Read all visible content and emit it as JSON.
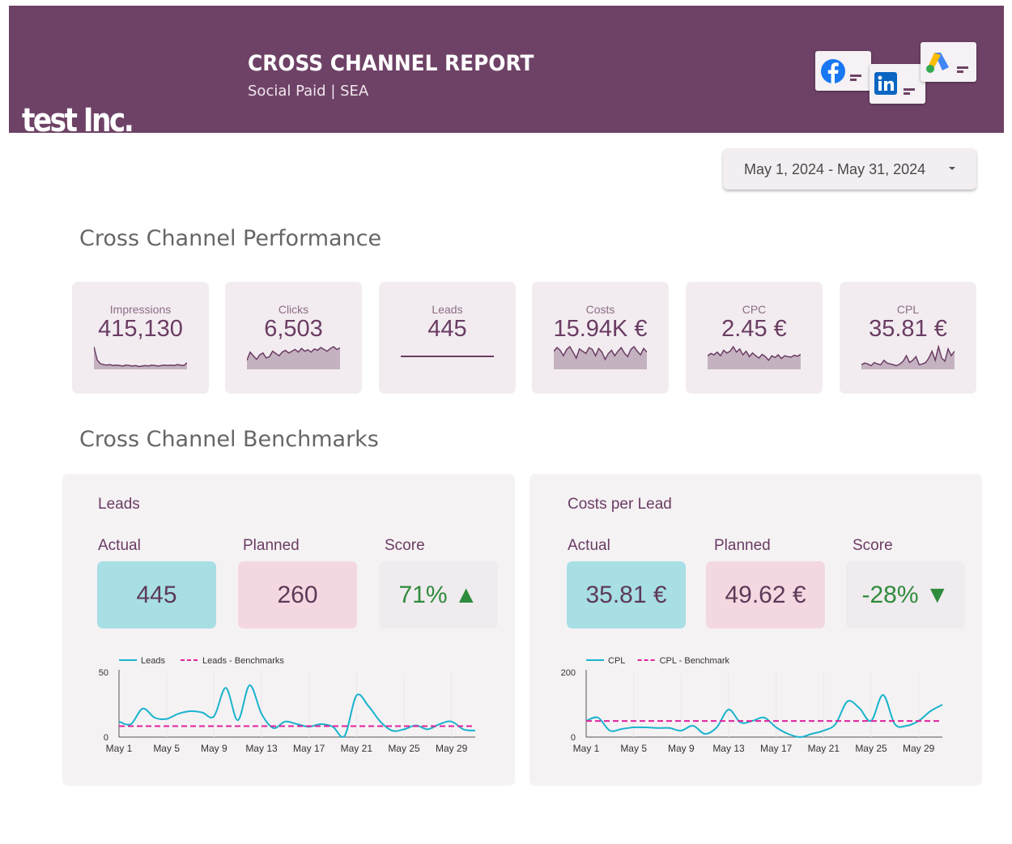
{
  "header": {
    "logo_text": "test Inc.",
    "title": "CROSS CHANNEL REPORT",
    "subtitle": "Social Paid | SEA",
    "channels": [
      "facebook",
      "linkedin",
      "google-ads"
    ]
  },
  "date_range": {
    "label": "May 1, 2024 - May 31, 2024"
  },
  "sections": {
    "performance": "Cross Channel Performance",
    "benchmarks": "Cross Channel Benchmarks"
  },
  "kpis": [
    {
      "label": "Impressions",
      "value": "415,130",
      "trend": [
        48,
        20,
        12,
        10,
        9,
        10,
        8,
        9,
        8,
        7,
        9,
        8,
        7,
        8,
        6,
        7,
        8,
        7,
        9,
        8,
        7,
        8,
        9,
        8,
        9,
        8,
        10,
        9,
        8,
        14
      ]
    },
    {
      "label": "Clicks",
      "value": "6,503",
      "trend": [
        20,
        38,
        30,
        22,
        32,
        36,
        25,
        28,
        40,
        35,
        30,
        38,
        42,
        36,
        40,
        44,
        38,
        46,
        40,
        43,
        38,
        45,
        42,
        48,
        44,
        40,
        46,
        50,
        44,
        47
      ]
    },
    {
      "label": "Leads",
      "value": "445",
      "trend": [
        30,
        30,
        30,
        30,
        30,
        30,
        30,
        30,
        30,
        30,
        30,
        30,
        30,
        30,
        30,
        30,
        30,
        30,
        30,
        30,
        30,
        30,
        30,
        30,
        30,
        30,
        30,
        30,
        30,
        30
      ]
    },
    {
      "label": "Costs",
      "value": "15.94K €",
      "trend": [
        40,
        48,
        42,
        30,
        44,
        50,
        38,
        25,
        45,
        40,
        35,
        48,
        44,
        30,
        46,
        38,
        22,
        35,
        42,
        30,
        40,
        48,
        36,
        28,
        44,
        50,
        40,
        32,
        46,
        38
      ]
    },
    {
      "label": "CPC",
      "value": "2.45 €",
      "trend": [
        30,
        35,
        32,
        38,
        30,
        42,
        36,
        40,
        50,
        38,
        45,
        32,
        40,
        28,
        36,
        30,
        25,
        33,
        28,
        20,
        30,
        26,
        32,
        24,
        30,
        28,
        27,
        31,
        29,
        33
      ]
    },
    {
      "label": "CPL",
      "value": "35.81 €",
      "trend": [
        10,
        14,
        12,
        8,
        15,
        12,
        10,
        20,
        14,
        12,
        10,
        8,
        12,
        18,
        30,
        15,
        20,
        28,
        10,
        12,
        15,
        25,
        40,
        20,
        50,
        25,
        18,
        45,
        30,
        40
      ]
    }
  ],
  "benchmarks": [
    {
      "title": "Leads",
      "actual_label": "Actual",
      "planned_label": "Planned",
      "score_label": "Score",
      "actual": "445",
      "planned": "260",
      "score": "71% ▲"
    },
    {
      "title": "Costs per Lead",
      "actual_label": "Actual",
      "planned_label": "Planned",
      "score_label": "Score",
      "actual": "35.81 €",
      "planned": "49.62 €",
      "score": "-28% ▼"
    }
  ],
  "chart_data": [
    {
      "type": "line",
      "title": "",
      "series": [
        {
          "name": "Leads",
          "color": "#19b3cc",
          "values": [
            12,
            10,
            22,
            15,
            14,
            18,
            20,
            19,
            16,
            38,
            13,
            40,
            18,
            7,
            12,
            10,
            8,
            10,
            8,
            1,
            32,
            24,
            12,
            5,
            6,
            9,
            6,
            10,
            12,
            6,
            5
          ]
        },
        {
          "name": "Leads - Benchmarks",
          "color": "#e0239c",
          "dashed": true,
          "values": [
            8.4,
            8.4,
            8.4,
            8.4,
            8.4,
            8.4,
            8.4,
            8.4,
            8.4,
            8.4,
            8.4,
            8.4,
            8.4,
            8.4,
            8.4,
            8.4,
            8.4,
            8.4,
            8.4,
            8.4,
            8.4,
            8.4,
            8.4,
            8.4,
            8.4,
            8.4,
            8.4,
            8.4,
            8.4,
            8.4,
            8.4
          ]
        }
      ],
      "x_tick_labels": [
        "May 1",
        "May 5",
        "May 9",
        "May 13",
        "May 17",
        "May 21",
        "May 25",
        "May 29"
      ],
      "x_tick_days": [
        1,
        5,
        9,
        13,
        17,
        21,
        25,
        29
      ],
      "y_tick_labels": [
        "50",
        "0"
      ],
      "ylim": [
        0,
        50
      ],
      "legend": "top-left"
    },
    {
      "type": "line",
      "title": "",
      "series": [
        {
          "name": "CPL",
          "color": "#19b3cc",
          "values": [
            50,
            60,
            20,
            25,
            30,
            30,
            28,
            28,
            20,
            35,
            10,
            30,
            85,
            45,
            50,
            60,
            30,
            10,
            0,
            10,
            20,
            40,
            110,
            90,
            50,
            130,
            40,
            35,
            50,
            80,
            100
          ]
        },
        {
          "name": "CPL - Benchmark",
          "color": "#e0239c",
          "dashed": true,
          "values": [
            49.6,
            49.6,
            49.6,
            49.6,
            49.6,
            49.6,
            49.6,
            49.6,
            49.6,
            49.6,
            49.6,
            49.6,
            49.6,
            49.6,
            49.6,
            49.6,
            49.6,
            49.6,
            49.6,
            49.6,
            49.6,
            49.6,
            49.6,
            49.6,
            49.6,
            49.6,
            49.6,
            49.6,
            49.6,
            49.6,
            49.6
          ]
        }
      ],
      "x_tick_labels": [
        "May 1",
        "May 5",
        "May 9",
        "May 13",
        "May 17",
        "May 21",
        "May 25",
        "May 29"
      ],
      "x_tick_days": [
        1,
        5,
        9,
        13,
        17,
        21,
        25,
        29
      ],
      "y_tick_labels": [
        "200",
        "0"
      ],
      "ylim": [
        0,
        200
      ],
      "legend": "top-left"
    }
  ]
}
